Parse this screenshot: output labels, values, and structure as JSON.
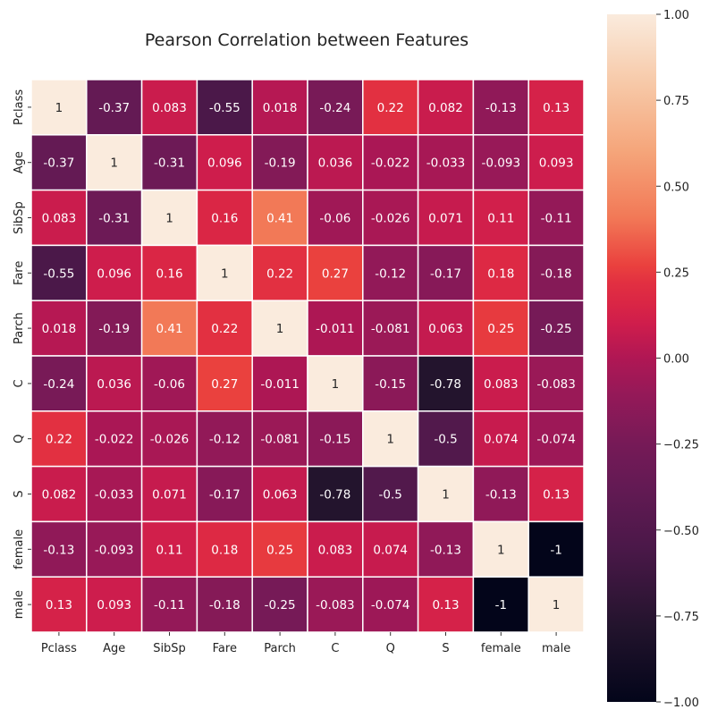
{
  "chart_data": {
    "type": "heatmap",
    "title": "Pearson Correlation between Features",
    "xlabel": "",
    "ylabel": "",
    "rows": [
      "Pclass",
      "Age",
      "SibSp",
      "Fare",
      "Parch",
      "C",
      "Q",
      "S",
      "female",
      "male"
    ],
    "columns": [
      "Pclass",
      "Age",
      "SibSp",
      "Fare",
      "Parch",
      "C",
      "Q",
      "S",
      "female",
      "male"
    ],
    "values": [
      [
        1,
        -0.37,
        0.083,
        -0.55,
        0.018,
        -0.24,
        0.22,
        0.082,
        -0.13,
        0.13
      ],
      [
        -0.37,
        1,
        -0.31,
        0.096,
        -0.19,
        0.036,
        -0.022,
        -0.033,
        -0.093,
        0.093
      ],
      [
        0.083,
        -0.31,
        1,
        0.16,
        0.41,
        -0.06,
        -0.026,
        0.071,
        0.11,
        -0.11
      ],
      [
        -0.55,
        0.096,
        0.16,
        1,
        0.22,
        0.27,
        -0.12,
        -0.17,
        0.18,
        -0.18
      ],
      [
        0.018,
        -0.19,
        0.41,
        0.22,
        1,
        -0.011,
        -0.081,
        0.063,
        0.25,
        -0.25
      ],
      [
        -0.24,
        0.036,
        -0.06,
        0.27,
        -0.011,
        1,
        -0.15,
        -0.78,
        0.083,
        -0.083
      ],
      [
        0.22,
        -0.022,
        -0.026,
        -0.12,
        -0.081,
        -0.15,
        1,
        -0.5,
        0.074,
        -0.074
      ],
      [
        0.082,
        -0.033,
        0.071,
        -0.17,
        0.063,
        -0.78,
        -0.5,
        1,
        -0.13,
        0.13
      ],
      [
        -0.13,
        -0.093,
        0.11,
        0.18,
        0.25,
        0.083,
        0.074,
        -0.13,
        1,
        -1
      ],
      [
        0.13,
        0.093,
        -0.11,
        -0.18,
        -0.25,
        -0.083,
        -0.074,
        0.13,
        -1,
        1
      ]
    ],
    "colorbar": {
      "range": [
        -1.0,
        1.0
      ],
      "ticks": [
        -1.0,
        -0.75,
        -0.5,
        -0.25,
        0.0,
        0.25,
        0.5,
        0.75,
        1.0
      ],
      "tick_labels": [
        "−1.00",
        "−0.75",
        "−0.50",
        "−0.25",
        "0.00",
        "0.25",
        "0.50",
        "0.75",
        "1.00"
      ],
      "colormap": "rocket"
    },
    "colors": {
      "cell_border": "#ffffff",
      "annotation_light": "#ffffff",
      "annotation_dark": "#262626"
    }
  }
}
